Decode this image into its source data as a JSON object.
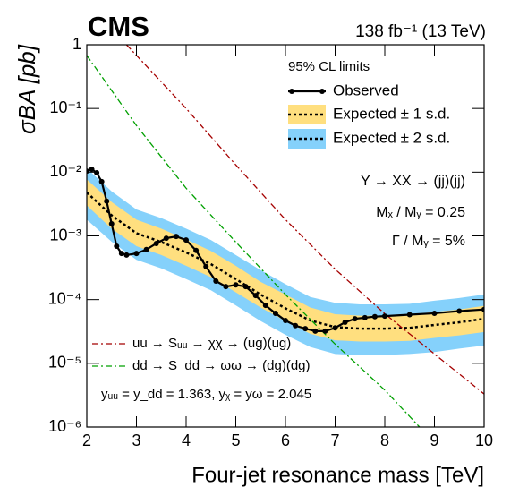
{
  "chart_data": {
    "type": "line",
    "title": "CMS",
    "subtitle": "138 fb⁻¹ (13 TeV)",
    "x_label": "Four-jet resonance mass [TeV]",
    "y_label": "σBA [pb]",
    "log_y": true,
    "xlim": [
      2,
      10
    ],
    "ylim": [
      1e-06,
      1
    ],
    "xticks": [
      2,
      3,
      4,
      5,
      6,
      7,
      8,
      9,
      10
    ],
    "yticks": [
      {
        "value": 1e-06,
        "label": "10⁻⁶"
      },
      {
        "value": 1e-05,
        "label": "10⁻⁵"
      },
      {
        "value": 0.0001,
        "label": "10⁻⁴"
      },
      {
        "value": 0.001,
        "label": "10⁻³"
      },
      {
        "value": 0.01,
        "label": "10⁻²"
      },
      {
        "value": 0.1,
        "label": "10⁻¹"
      },
      1
    ],
    "legend_title": "95% CL limits",
    "annotations": [
      "Y → XX → (jj)(jj)",
      "Mₓ / Mᵧ = 0.25",
      "Γ / Mᵧ = 5%",
      "yᵤᵤ = y_dd = 1.363, yᵪ = yω = 2.045"
    ],
    "series": [
      {
        "name": "Observed",
        "color": "#000000",
        "x": [
          2.0,
          2.1,
          2.2,
          2.3,
          2.4,
          2.5,
          2.6,
          2.7,
          2.8,
          3.0,
          3.2,
          3.4,
          3.6,
          3.8,
          4.0,
          4.2,
          4.4,
          4.6,
          4.8,
          5.0,
          5.2,
          5.4,
          5.6,
          5.8,
          6.0,
          6.2,
          6.4,
          6.6,
          6.8,
          7.0,
          7.2,
          7.4,
          7.6,
          7.8,
          8.0,
          8.5,
          9.0,
          9.5,
          10.0
        ],
        "values": [
          0.0104,
          0.0111,
          0.0098,
          0.0071,
          0.0035,
          0.00155,
          0.00069,
          0.00053,
          0.0005,
          0.00053,
          0.00061,
          0.00076,
          0.00092,
          0.00098,
          0.00086,
          0.00059,
          0.00033,
          0.000195,
          0.00016,
          0.00017,
          0.00016,
          0.000116,
          8.1e-05,
          6.1e-05,
          4.7e-05,
          3.9e-05,
          3.5e-05,
          3.2e-05,
          3.2e-05,
          3.6e-05,
          4.4e-05,
          5e-05,
          5.2e-05,
          5.4e-05,
          5.5e-05,
          5.8e-05,
          6.1e-05,
          6.6e-05,
          7e-05
        ]
      },
      {
        "name": "Expected ± 1 s.d.",
        "color": "#ffdf7f",
        "x": [
          2,
          2.5,
          3,
          3.5,
          4,
          4.5,
          5,
          5.5,
          6,
          6.5,
          7,
          7.5,
          8,
          8.5,
          9,
          9.5,
          10
        ],
        "values": [
          0.0048,
          0.0021,
          0.0011,
          0.0008,
          0.00055,
          0.00036,
          0.00021,
          0.00012,
          7.3e-05,
          4.7e-05,
          3.7e-05,
          3.5e-05,
          3.5e-05,
          3.6e-05,
          4e-05,
          4.4e-05,
          5e-05
        ],
        "lower": [
          0.003,
          0.0013,
          0.00069,
          0.0005,
          0.00034,
          0.000225,
          0.00013,
          7.5e-05,
          4.6e-05,
          2.9e-05,
          2.3e-05,
          2.2e-05,
          2.2e-05,
          2.25e-05,
          2.5e-05,
          2.75e-05,
          3.1e-05
        ],
        "upper": [
          0.0077,
          0.0034,
          0.0018,
          0.0013,
          0.00088,
          0.00058,
          0.00034,
          0.00019,
          0.00012,
          7.5e-05,
          5.9e-05,
          5.6e-05,
          5.6e-05,
          5.8e-05,
          6.4e-05,
          7e-05,
          8e-05
        ]
      },
      {
        "name": "Expected ± 2 s.d.",
        "color": "#85d1fb",
        "x": [
          2,
          2.5,
          3,
          3.5,
          4,
          4.5,
          5,
          5.5,
          6,
          6.5,
          7,
          7.5,
          8,
          8.5,
          9,
          9.5,
          10
        ],
        "lower": [
          0.0018,
          0.00081,
          0.00042,
          0.00031,
          0.00021,
          0.00014,
          8.1e-05,
          4.6e-05,
          2.8e-05,
          1.8e-05,
          1.4e-05,
          1.35e-05,
          1.35e-05,
          1.4e-05,
          1.5e-05,
          1.7e-05,
          1.9e-05
        ],
        "upper": [
          0.0115,
          0.005,
          0.0026,
          0.0019,
          0.0013,
          0.00086,
          0.0005,
          0.00029,
          0.000175,
          0.00011,
          8.9e-05,
          8.4e-05,
          8.4e-05,
          8.6e-05,
          9.6e-05,
          0.000106,
          0.00012
        ]
      },
      {
        "name": "uu → Sᵤᵤ → χχ → (ug)(ug)",
        "color": "#a50000",
        "x": [
          2.8,
          4,
          5,
          6,
          7,
          8,
          9,
          10
        ],
        "values": [
          1,
          0.1,
          0.013,
          0.0018,
          0.0003,
          6e-05,
          1.4e-05,
          3.3e-06
        ]
      },
      {
        "name": "dd → S_dd → ωω → (dg)(dg)",
        "color": "#00a000",
        "x": [
          2,
          3,
          4,
          5,
          6,
          7,
          8,
          8.7
        ],
        "values": [
          0.68,
          0.054,
          0.0056,
          0.0008,
          0.00012,
          2e-05,
          3.8e-06,
          1e-06
        ]
      }
    ]
  }
}
